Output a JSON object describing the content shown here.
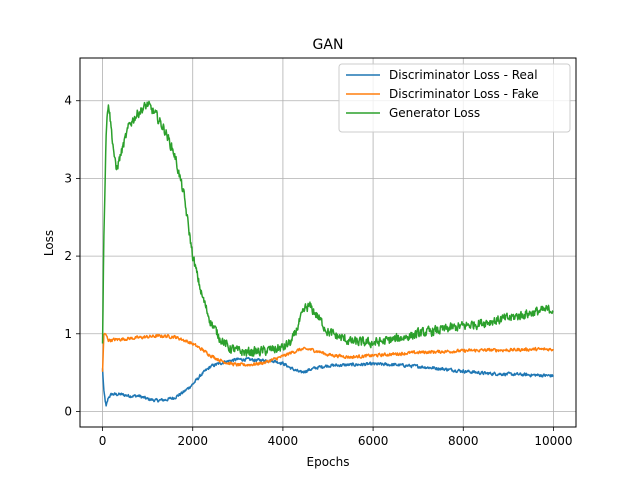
{
  "chart_data": {
    "type": "line",
    "title": "GAN",
    "xlabel": "Epochs",
    "ylabel": "Loss",
    "xlim": [
      -500,
      10500
    ],
    "ylim": [
      -0.2,
      4.55
    ],
    "x_ticks": [
      0,
      2000,
      4000,
      6000,
      8000,
      10000
    ],
    "x_tick_labels": [
      "0",
      "2000",
      "4000",
      "6000",
      "8000",
      "10000"
    ],
    "y_ticks": [
      0,
      1,
      2,
      3,
      4
    ],
    "y_tick_labels": [
      "0",
      "1",
      "2",
      "3",
      "4"
    ],
    "grid": true,
    "legend_position": "upper right",
    "series": [
      {
        "name": "Discriminator Loss - Real",
        "color": "#1f77b4",
        "noise": 0.03,
        "x": [
          0,
          30,
          80,
          130,
          200,
          400,
          600,
          800,
          1000,
          1200,
          1400,
          1600,
          1800,
          2000,
          2200,
          2400,
          2600,
          2800,
          3000,
          3200,
          3400,
          3600,
          3800,
          4000,
          4200,
          4400,
          4600,
          4800,
          5000,
          5500,
          6000,
          6500,
          7000,
          7500,
          8000,
          8500,
          9000,
          9500,
          10000
        ],
        "y": [
          0.55,
          0.25,
          0.06,
          0.18,
          0.22,
          0.22,
          0.2,
          0.2,
          0.16,
          0.14,
          0.15,
          0.18,
          0.25,
          0.35,
          0.48,
          0.58,
          0.62,
          0.65,
          0.67,
          0.67,
          0.66,
          0.66,
          0.65,
          0.62,
          0.55,
          0.5,
          0.54,
          0.57,
          0.59,
          0.6,
          0.61,
          0.6,
          0.58,
          0.55,
          0.52,
          0.49,
          0.48,
          0.47,
          0.46
        ]
      },
      {
        "name": "Discriminator Loss - Fake",
        "color": "#ff7f0e",
        "noise": 0.03,
        "x": [
          0,
          30,
          80,
          130,
          200,
          400,
          600,
          800,
          1000,
          1200,
          1400,
          1600,
          1800,
          2000,
          2200,
          2400,
          2600,
          2800,
          3000,
          3200,
          3400,
          3600,
          3800,
          4000,
          4200,
          4400,
          4600,
          4800,
          5000,
          5500,
          6000,
          6500,
          7000,
          7500,
          8000,
          8500,
          9000,
          9500,
          10000
        ],
        "y": [
          0.5,
          1.0,
          0.98,
          0.92,
          0.92,
          0.93,
          0.94,
          0.95,
          0.96,
          0.97,
          0.97,
          0.96,
          0.92,
          0.87,
          0.8,
          0.72,
          0.66,
          0.62,
          0.6,
          0.6,
          0.61,
          0.63,
          0.67,
          0.71,
          0.76,
          0.8,
          0.8,
          0.77,
          0.73,
          0.7,
          0.72,
          0.74,
          0.76,
          0.77,
          0.78,
          0.79,
          0.79,
          0.8,
          0.8
        ]
      },
      {
        "name": "Generator Loss",
        "color": "#2ca02c",
        "noise": 0.09,
        "x": [
          0,
          30,
          80,
          130,
          200,
          300,
          400,
          600,
          800,
          1000,
          1200,
          1400,
          1600,
          1800,
          1900,
          2000,
          2200,
          2400,
          2600,
          2800,
          3000,
          3200,
          3400,
          3600,
          3800,
          4000,
          4200,
          4400,
          4500,
          4600,
          4800,
          5000,
          5500,
          6000,
          6500,
          7000,
          7500,
          8000,
          8500,
          9000,
          9500,
          10000
        ],
        "y": [
          0.9,
          2.3,
          3.6,
          4.0,
          3.6,
          3.1,
          3.3,
          3.7,
          3.85,
          3.95,
          3.8,
          3.6,
          3.3,
          2.8,
          2.4,
          2.0,
          1.5,
          1.15,
          0.95,
          0.82,
          0.78,
          0.76,
          0.77,
          0.78,
          0.8,
          0.82,
          0.9,
          1.2,
          1.33,
          1.35,
          1.2,
          1.02,
          0.9,
          0.88,
          0.93,
          1.0,
          1.05,
          1.1,
          1.15,
          1.2,
          1.27,
          1.32
        ]
      }
    ]
  }
}
